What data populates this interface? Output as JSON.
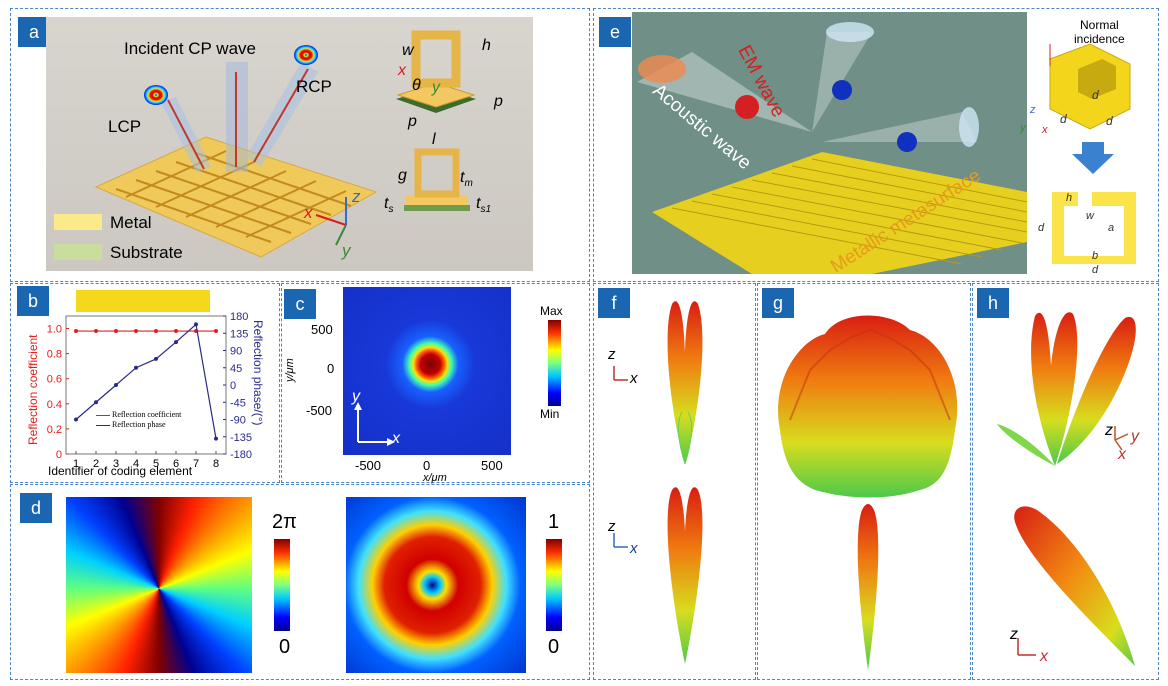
{
  "panels": {
    "a": "a",
    "b": "b",
    "c": "c",
    "d": "d",
    "e": "e",
    "f": "f",
    "g": "g",
    "h": "h"
  },
  "panel_a": {
    "incident": "Incident CP wave",
    "lcp": "LCP",
    "rcp": "RCP",
    "legend_metal": "Metal",
    "legend_substrate": "Substrate",
    "dim_w": "w",
    "dim_h": "h",
    "dim_x": "x",
    "dim_theta": "θ",
    "dim_y": "y",
    "dim_p1": "p",
    "dim_p2": "p",
    "dim_l": "l",
    "dim_g": "g",
    "dim_tm": "t",
    "dim_tm_sub": "m",
    "dim_ts": "t",
    "dim_ts_sub": "s",
    "dim_ts1": "t",
    "dim_ts1_sub": "s1",
    "axis_z": "z",
    "axis_x": "x",
    "axis_y": "y",
    "colors": {
      "metal": "#fde98a",
      "substrate": "#c9dc9e",
      "lcp": "#c0392b",
      "rcp": "#c0392b"
    }
  },
  "panel_b": {
    "ylabel_left": "Reflection coefficient",
    "ylabel_right": "Reflection phase/(°)",
    "xlabel": "Identifier of coding element",
    "legend_coef": "Reflection coefficient",
    "legend_phase": "Reflection phase",
    "left_ticks": [
      "1.0",
      "0.8",
      "0.6",
      "0.4",
      "0.2",
      "0"
    ],
    "right_ticks": [
      "180",
      "135",
      "90",
      "45",
      "0",
      "-45",
      "-90",
      "-135",
      "-180"
    ],
    "x_ticks": [
      "1",
      "2",
      "3",
      "4",
      "5",
      "6",
      "7",
      "8"
    ],
    "colors": {
      "coef": "#e02020",
      "phase": "#2a2a8c"
    }
  },
  "chart_data": [
    {
      "type": "line",
      "x": [
        1,
        2,
        3,
        4,
        5,
        6,
        7,
        8
      ],
      "series": [
        {
          "name": "Reflection coefficient",
          "axis": "left",
          "values": [
            0.98,
            0.98,
            0.98,
            0.98,
            0.98,
            0.98,
            0.98,
            0.98
          ]
        },
        {
          "name": "Reflection phase",
          "axis": "right",
          "values": [
            -90,
            -45,
            0,
            45,
            68,
            112,
            158,
            -140
          ]
        }
      ],
      "xlabel": "Identifier of coding element",
      "ylabel": "Reflection coefficient",
      "ylabel2": "Reflection phase/(°)",
      "ylim": [
        0,
        1.1
      ],
      "ylim2": [
        -180,
        180
      ],
      "grid": false,
      "legend": "bottom-center"
    }
  ],
  "panel_c": {
    "ticks_y": [
      "500",
      "0",
      "-500"
    ],
    "ticks_x": [
      "-500",
      "0",
      "500"
    ],
    "ylabel": "y/μm",
    "xlabel": "x/μm",
    "axis_y": "y",
    "axis_x": "x",
    "cbar_max": "Max",
    "cbar_min": "Min"
  },
  "panel_d": {
    "cbar1_top": "2π",
    "cbar1_bottom": "0",
    "cbar2_top": "1",
    "cbar2_bottom": "0"
  },
  "panel_e": {
    "em": "EM wave",
    "acoustic": "Acoustic wave",
    "meta": "Metallic metasurface",
    "normal": "Normal\nincidence",
    "dim_d1": "d",
    "dim_d2": "d",
    "dim_d3": "d",
    "dim_h": "h",
    "dim_w": "w",
    "dim_a": "a",
    "dim_b": "b",
    "dim_d4": "d",
    "dim_d5": "d",
    "axis_z": "z",
    "axis_y": "y",
    "axis_x": "x",
    "colors": {
      "bg": "#6e8f86",
      "metal": "#f3d51c",
      "em": "#d42020"
    }
  },
  "panel_f": {
    "axis_z1": "z",
    "axis_x1": "x",
    "axis_z2": "z",
    "axis_x2": "x"
  },
  "panel_h": {
    "axis_z1": "z",
    "axis_y1": "y",
    "axis_x1": "x",
    "axis_z2": "z",
    "axis_x2": "x"
  }
}
